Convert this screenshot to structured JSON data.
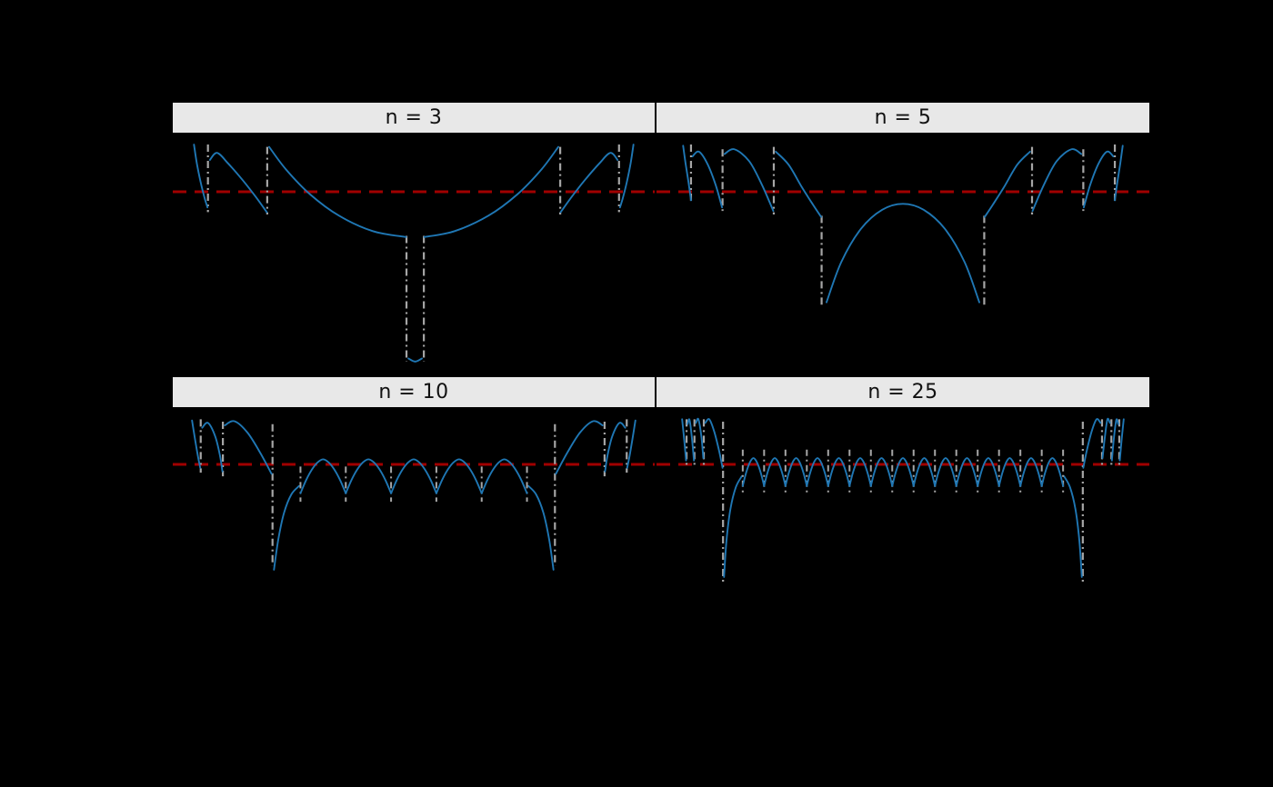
{
  "figure": {
    "background": "#000000",
    "panel_background": "#000000",
    "strip_background": "#e8e8e8",
    "strip_text_color": "#111111",
    "colors": {
      "curve": "#1f77b4",
      "asymptote": "#a6a6a6",
      "reference_line": "#a00000"
    }
  },
  "chart_data": {
    "type": "line",
    "title": "",
    "legend": null,
    "axes_visible": false,
    "notes": "2x2 faceted chart on a black background. Each facet shows a blue error-style curve with gray dash-dot vertical asymptote/jump markers and a dark-red dashed horizontal reference line. No axis tick labels or titles are visible in the screenshot. Coordinates below are normalized panel fractions: x from 0 (left) to 1 (right), y from 0 (top) to 1 (bottom).",
    "facets": [
      {
        "label": "n = 3",
        "reference_y": 0.249,
        "vlines": [
          [
            0.073,
            0.05,
            0.335
          ],
          [
            0.196,
            0.06,
            0.345
          ],
          [
            0.485,
            0.435,
            0.965
          ],
          [
            0.521,
            0.435,
            0.965
          ],
          [
            0.804,
            0.06,
            0.345
          ],
          [
            0.926,
            0.05,
            0.335
          ]
        ],
        "segments": [
          [
            [
              0.044,
              0.05
            ],
            [
              0.05,
              0.13
            ],
            [
              0.058,
              0.21
            ],
            [
              0.066,
              0.275
            ],
            [
              0.072,
              0.315
            ]
          ],
          [
            [
              0.077,
              0.115
            ],
            [
              0.092,
              0.085
            ],
            [
              0.115,
              0.13
            ],
            [
              0.145,
              0.2
            ],
            [
              0.172,
              0.27
            ],
            [
              0.195,
              0.335
            ]
          ],
          [
            [
              0.2,
              0.06
            ],
            [
              0.235,
              0.155
            ],
            [
              0.285,
              0.26
            ],
            [
              0.345,
              0.35
            ],
            [
              0.415,
              0.415
            ],
            [
              0.484,
              0.44
            ]
          ],
          [
            [
              0.489,
              0.952
            ],
            [
              0.503,
              0.965
            ],
            [
              0.517,
              0.952
            ]
          ],
          [
            [
              0.522,
              0.44
            ],
            [
              0.585,
              0.415
            ],
            [
              0.655,
              0.35
            ],
            [
              0.715,
              0.26
            ],
            [
              0.765,
              0.155
            ],
            [
              0.8,
              0.06
            ]
          ],
          [
            [
              0.805,
              0.335
            ],
            [
              0.828,
              0.27
            ],
            [
              0.855,
              0.2
            ],
            [
              0.885,
              0.13
            ],
            [
              0.908,
              0.085
            ],
            [
              0.923,
              0.115
            ]
          ],
          [
            [
              0.928,
              0.315
            ],
            [
              0.934,
              0.275
            ],
            [
              0.942,
              0.21
            ],
            [
              0.95,
              0.13
            ],
            [
              0.956,
              0.05
            ]
          ]
        ]
      },
      {
        "label": "n = 5",
        "reference_y": 0.249,
        "vlines": [
          [
            0.07,
            0.05,
            0.3
          ],
          [
            0.134,
            0.07,
            0.33
          ],
          [
            0.238,
            0.06,
            0.345
          ],
          [
            0.335,
            0.35,
            0.725
          ],
          [
            0.665,
            0.35,
            0.725
          ],
          [
            0.762,
            0.06,
            0.345
          ],
          [
            0.866,
            0.07,
            0.33
          ],
          [
            0.93,
            0.05,
            0.3
          ]
        ],
        "segments": [
          [
            [
              0.054,
              0.055
            ],
            [
              0.059,
              0.13
            ],
            [
              0.065,
              0.21
            ],
            [
              0.07,
              0.285
            ]
          ],
          [
            [
              0.073,
              0.1
            ],
            [
              0.086,
              0.08
            ],
            [
              0.103,
              0.13
            ],
            [
              0.12,
              0.22
            ],
            [
              0.133,
              0.315
            ]
          ],
          [
            [
              0.138,
              0.09
            ],
            [
              0.158,
              0.07
            ],
            [
              0.188,
              0.12
            ],
            [
              0.214,
              0.22
            ],
            [
              0.237,
              0.33
            ]
          ],
          [
            [
              0.242,
              0.08
            ],
            [
              0.268,
              0.135
            ],
            [
              0.295,
              0.23
            ],
            [
              0.318,
              0.305
            ],
            [
              0.334,
              0.355
            ]
          ],
          [
            [
              0.345,
              0.715
            ],
            [
              0.375,
              0.545
            ],
            [
              0.415,
              0.405
            ],
            [
              0.458,
              0.325
            ],
            [
              0.5,
              0.3
            ],
            [
              0.542,
              0.325
            ],
            [
              0.585,
              0.405
            ],
            [
              0.625,
              0.545
            ],
            [
              0.655,
              0.715
            ]
          ],
          [
            [
              0.666,
              0.355
            ],
            [
              0.682,
              0.305
            ],
            [
              0.705,
              0.23
            ],
            [
              0.732,
              0.135
            ],
            [
              0.758,
              0.08
            ]
          ],
          [
            [
              0.763,
              0.33
            ],
            [
              0.786,
              0.22
            ],
            [
              0.812,
              0.12
            ],
            [
              0.842,
              0.07
            ],
            [
              0.862,
              0.09
            ]
          ],
          [
            [
              0.867,
              0.315
            ],
            [
              0.88,
              0.22
            ],
            [
              0.897,
              0.13
            ],
            [
              0.914,
              0.08
            ],
            [
              0.927,
              0.1
            ]
          ],
          [
            [
              0.93,
              0.285
            ],
            [
              0.935,
              0.21
            ],
            [
              0.941,
              0.13
            ],
            [
              0.946,
              0.055
            ]
          ]
        ]
      },
      {
        "label": "n = 10",
        "reference_y": 0.236,
        "vlines": [
          [
            0.058,
            0.05,
            0.27
          ],
          [
            0.104,
            0.06,
            0.285
          ],
          [
            0.207,
            0.07,
            0.655
          ],
          [
            0.793,
            0.07,
            0.655
          ],
          [
            0.896,
            0.06,
            0.285
          ],
          [
            0.942,
            0.05,
            0.27
          ]
        ],
        "segments": [
          [
            [
              0.04,
              0.055
            ],
            [
              0.046,
              0.13
            ],
            [
              0.052,
              0.2
            ],
            [
              0.057,
              0.25
            ]
          ],
          [
            [
              0.061,
              0.085
            ],
            [
              0.073,
              0.065
            ],
            [
              0.088,
              0.12
            ],
            [
              0.098,
              0.2
            ],
            [
              0.103,
              0.265
            ]
          ],
          [
            [
              0.108,
              0.075
            ],
            [
              0.128,
              0.058
            ],
            [
              0.155,
              0.105
            ],
            [
              0.182,
              0.19
            ],
            [
              0.205,
              0.275
            ]
          ],
          [
            [
              0.21,
              0.67
            ],
            [
              0.219,
              0.545
            ],
            [
              0.231,
              0.435
            ],
            [
              0.246,
              0.36
            ],
            [
              0.262,
              0.325
            ]
          ],
          [
            [
              0.738,
              0.325
            ],
            [
              0.754,
              0.36
            ],
            [
              0.769,
              0.435
            ],
            [
              0.781,
              0.545
            ],
            [
              0.79,
              0.67
            ]
          ],
          [
            [
              0.795,
              0.275
            ],
            [
              0.818,
              0.19
            ],
            [
              0.845,
              0.105
            ],
            [
              0.872,
              0.058
            ],
            [
              0.892,
              0.075
            ]
          ],
          [
            [
              0.897,
              0.265
            ],
            [
              0.902,
              0.2
            ],
            [
              0.912,
              0.12
            ],
            [
              0.927,
              0.065
            ],
            [
              0.939,
              0.085
            ]
          ],
          [
            [
              0.943,
              0.25
            ],
            [
              0.948,
              0.2
            ],
            [
              0.954,
              0.13
            ],
            [
              0.96,
              0.055
            ]
          ]
        ],
        "scallops": {
          "x0": 0.265,
          "x1": 0.735,
          "count": 5,
          "peak": 0.215,
          "valley": 0.355,
          "vline_top": 0.245,
          "vline_bottom": 0.39
        }
      },
      {
        "label": "n = 25",
        "reference_y": 0.236,
        "vlines": [
          [
            0.061,
            0.05,
            0.245
          ],
          [
            0.077,
            0.05,
            0.245
          ],
          [
            0.096,
            0.05,
            0.245
          ],
          [
            0.135,
            0.06,
            0.72
          ],
          [
            0.865,
            0.06,
            0.72
          ],
          [
            0.904,
            0.05,
            0.245
          ],
          [
            0.923,
            0.05,
            0.245
          ],
          [
            0.939,
            0.05,
            0.245
          ]
        ],
        "segments": [
          [
            [
              0.052,
              0.05
            ],
            [
              0.056,
              0.13
            ],
            [
              0.06,
              0.22
            ]
          ],
          [
            [
              0.063,
              0.07
            ],
            [
              0.067,
              0.052
            ],
            [
              0.072,
              0.13
            ],
            [
              0.076,
              0.22
            ]
          ],
          [
            [
              0.08,
              0.065
            ],
            [
              0.085,
              0.05
            ],
            [
              0.091,
              0.12
            ],
            [
              0.095,
              0.21
            ]
          ],
          [
            [
              0.099,
              0.065
            ],
            [
              0.107,
              0.05
            ],
            [
              0.117,
              0.1
            ],
            [
              0.127,
              0.18
            ],
            [
              0.134,
              0.25
            ]
          ],
          [
            [
              0.137,
              0.7
            ],
            [
              0.142,
              0.55
            ],
            [
              0.15,
              0.42
            ],
            [
              0.161,
              0.33
            ],
            [
              0.173,
              0.285
            ]
          ],
          [
            [
              0.827,
              0.285
            ],
            [
              0.839,
              0.33
            ],
            [
              0.85,
              0.42
            ],
            [
              0.858,
              0.55
            ],
            [
              0.863,
              0.7
            ]
          ],
          [
            [
              0.866,
              0.25
            ],
            [
              0.873,
              0.18
            ],
            [
              0.883,
              0.1
            ],
            [
              0.893,
              0.05
            ],
            [
              0.901,
              0.065
            ]
          ],
          [
            [
              0.905,
              0.21
            ],
            [
              0.91,
              0.12
            ],
            [
              0.915,
              0.05
            ],
            [
              0.92,
              0.065
            ]
          ],
          [
            [
              0.924,
              0.22
            ],
            [
              0.928,
              0.13
            ],
            [
              0.933,
              0.052
            ],
            [
              0.937,
              0.07
            ]
          ],
          [
            [
              0.94,
              0.22
            ],
            [
              0.944,
              0.13
            ],
            [
              0.948,
              0.05
            ]
          ]
        ],
        "scallops": {
          "x0": 0.175,
          "x1": 0.825,
          "count": 15,
          "peak": 0.21,
          "valley": 0.325,
          "vline_top": 0.175,
          "vline_bottom": 0.365
        }
      }
    ]
  }
}
